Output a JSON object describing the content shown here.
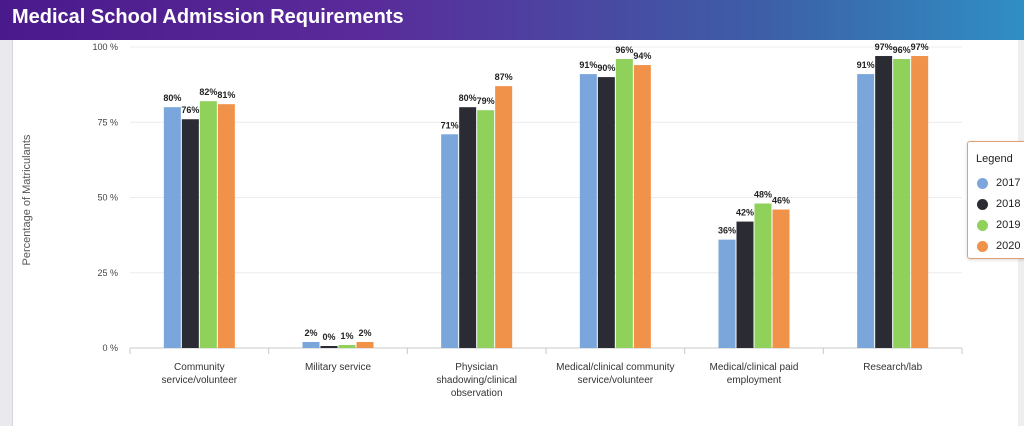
{
  "header": {
    "title": "Medical School Admission Requirements"
  },
  "chart_data": {
    "type": "bar",
    "title": "Medical School Admission Requirements",
    "xlabel": "",
    "ylabel": "Percentage of Matriculants",
    "ylim": [
      0,
      100
    ],
    "yticks": [
      "0 %",
      "25 %",
      "50 %",
      "75 %",
      "100 %"
    ],
    "ytick_values": [
      0,
      25,
      50,
      75,
      100
    ],
    "categories": [
      [
        "Community",
        "service/volunteer"
      ],
      [
        "Military service"
      ],
      [
        "Physician",
        "shadowing/clinical",
        "observation"
      ],
      [
        "Medical/clinical community",
        "service/volunteer"
      ],
      [
        "Medical/clinical paid",
        "employment"
      ],
      [
        "Research/lab"
      ]
    ],
    "series": [
      {
        "name": "2017",
        "color": "#7aa6dc",
        "values": [
          80,
          2,
          71,
          91,
          36,
          91
        ],
        "labels": [
          "80%",
          "2%",
          "71%",
          "91%",
          "36%",
          "91%"
        ]
      },
      {
        "name": "2018",
        "color": "#2b2b33",
        "values": [
          76,
          0,
          80,
          90,
          42,
          97
        ],
        "labels": [
          "76%",
          "0%",
          "80%",
          "90%",
          "42%",
          "97%"
        ]
      },
      {
        "name": "2019",
        "color": "#8fd15a",
        "values": [
          82,
          1,
          79,
          96,
          48,
          96
        ],
        "labels": [
          "82%",
          "1%",
          "79%",
          "96%",
          "48%",
          "96%"
        ]
      },
      {
        "name": "2020",
        "color": "#f0924a",
        "values": [
          81,
          2,
          87,
          94,
          46,
          97
        ],
        "labels": [
          "81%",
          "2%",
          "87%",
          "94%",
          "46%",
          "97%"
        ]
      }
    ],
    "legend": {
      "title": "Legend",
      "position": "right"
    }
  }
}
